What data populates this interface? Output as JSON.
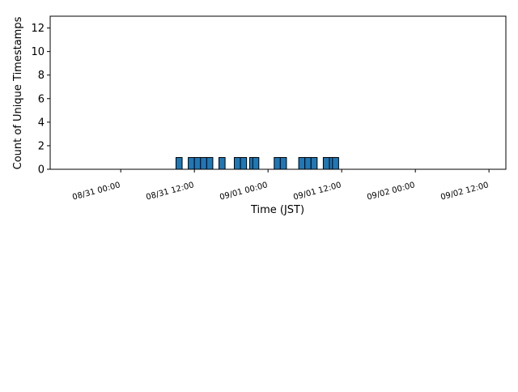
{
  "chart_data": {
    "type": "bar",
    "title": "",
    "xlabel": "Time (JST)",
    "ylabel": "Count of Unique Timestamps",
    "ylim": [
      0,
      13
    ],
    "yticks": [
      0,
      2,
      4,
      6,
      8,
      10,
      12
    ],
    "xlim": [
      "08/30 12:30",
      "09/02 14:45"
    ],
    "xticks": [
      "08/31 00:00",
      "08/31 12:00",
      "09/01 00:00",
      "09/01 12:00",
      "09/02 00:00",
      "09/02 12:00"
    ],
    "bar_width_hours": 1,
    "grid": false,
    "legend": "none",
    "bar_color": "#1f77b4",
    "edge_color": "#000000",
    "series": [
      {
        "bins": [
          {
            "start": "08/31 09:00",
            "value": 1
          },
          {
            "start": "08/31 11:00",
            "value": 1
          },
          {
            "start": "08/31 12:00",
            "value": 1
          },
          {
            "start": "08/31 13:00",
            "value": 1
          },
          {
            "start": "08/31 14:00",
            "value": 1
          },
          {
            "start": "08/31 16:00",
            "value": 1
          },
          {
            "start": "08/31 18:30",
            "value": 1
          },
          {
            "start": "08/31 19:30",
            "value": 1
          },
          {
            "start": "08/31 21:00",
            "value": 1
          },
          {
            "start": "08/31 21:30",
            "value": 1
          },
          {
            "start": "09/01 01:00",
            "value": 1
          },
          {
            "start": "09/01 02:00",
            "value": 1
          },
          {
            "start": "09/01 05:00",
            "value": 1
          },
          {
            "start": "09/01 06:00",
            "value": 1
          },
          {
            "start": "09/01 07:00",
            "value": 1
          },
          {
            "start": "09/01 09:00",
            "value": 1
          },
          {
            "start": "09/01 10:00",
            "value": 1
          },
          {
            "start": "09/01 10:30",
            "value": 1
          }
        ]
      }
    ]
  }
}
